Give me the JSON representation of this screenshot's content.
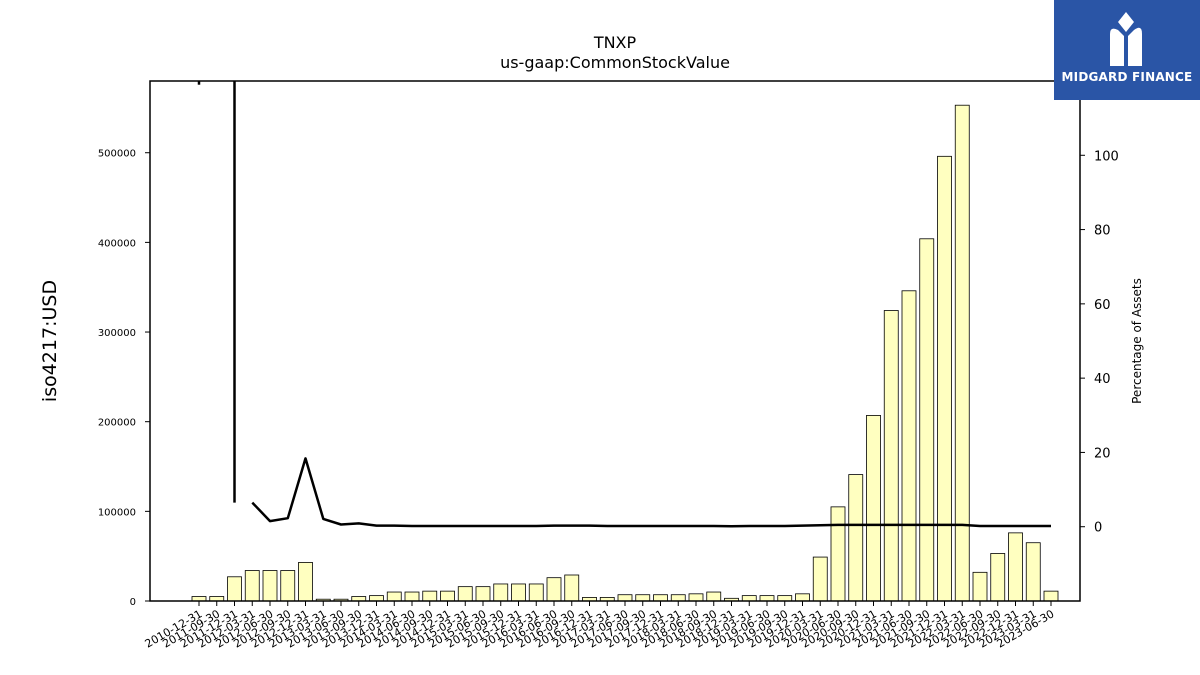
{
  "brand": {
    "name": "MIDGARD FINANCE",
    "bg_color": "#2a55a6"
  },
  "chart_data": {
    "type": "bar",
    "title": "TNXP",
    "subtitle": "us-gaap:CommonStockValue",
    "ylabel": "iso4217:USD",
    "y2label": "Percentage of Assets",
    "ylim": [
      0,
      580000
    ],
    "y2lim": [
      -20,
      120
    ],
    "yticks": [
      0,
      100000,
      200000,
      300000,
      400000,
      500000
    ],
    "y2ticks": [
      0,
      20,
      40,
      60,
      80,
      100
    ],
    "bar_color": "#ffffc0",
    "line_color": "#000000",
    "grid": false,
    "categories": [
      "2010-12-31",
      "2011-09-30",
      "2011-12-31",
      "2012-03-31",
      "2012-06-30",
      "2012-09-30",
      "2012-12-31",
      "2013-03-31",
      "2013-06-30",
      "2013-09-30",
      "2013-12-31",
      "2014-03-31",
      "2014-06-30",
      "2014-09-30",
      "2014-12-31",
      "2015-03-31",
      "2015-06-30",
      "2015-09-30",
      "2015-12-31",
      "2016-03-31",
      "2016-06-30",
      "2016-09-30",
      "2016-12-31",
      "2017-03-31",
      "2017-06-30",
      "2017-09-30",
      "2017-12-31",
      "2018-03-31",
      "2018-06-30",
      "2018-09-30",
      "2018-12-31",
      "2019-03-31",
      "2019-06-30",
      "2019-09-30",
      "2019-12-31",
      "2020-03-31",
      "2020-06-30",
      "2020-09-30",
      "2020-12-31",
      "2021-03-31",
      "2021-06-30",
      "2021-09-30",
      "2021-12-31",
      "2022-03-31",
      "2022-06-30",
      "2022-09-30",
      "2022-12-31",
      "2023-03-31",
      "2023-06-30"
    ],
    "series": [
      {
        "kind": "bar",
        "values": [
          5000,
          5000,
          27000,
          34000,
          34000,
          34000,
          43000,
          2000,
          2000,
          5000,
          6000,
          10000,
          10000,
          11000,
          11000,
          16000,
          16000,
          19000,
          19000,
          19000,
          26000,
          29000,
          4000,
          4000,
          7000,
          7000,
          7000,
          7000,
          8000,
          10000,
          3000,
          6000,
          6000,
          6000,
          8000,
          49000,
          105000,
          141000,
          207000,
          324000,
          346000,
          404000,
          496000,
          553000,
          32000,
          53000,
          76000,
          65000,
          11000
        ]
      },
      {
        "kind": "line",
        "axis": "y2",
        "values": [
          null,
          null,
          null,
          6.5,
          1.5,
          2.3,
          18.4,
          2.1,
          0.6,
          0.9,
          0.3,
          0.3,
          0.2,
          0.2,
          0.2,
          0.2,
          0.2,
          0.2,
          0.2,
          0.2,
          0.3,
          0.3,
          0.3,
          0.2,
          0.2,
          0.2,
          0.2,
          0.2,
          0.2,
          0.2,
          0.1,
          0.2,
          0.2,
          0.2,
          0.3,
          0.4,
          0.5,
          0.5,
          0.5,
          0.5,
          0.5,
          0.5,
          0.5,
          0.5,
          0.2,
          0.2,
          0.2,
          0.2,
          0.2
        ]
      }
    ],
    "line_prefix": {
      "x": "2011-12-31",
      "y2_from": 6.5,
      "y2_to": 121,
      "marker_at": "2010-12-31",
      "marker_y2": 119
    }
  }
}
